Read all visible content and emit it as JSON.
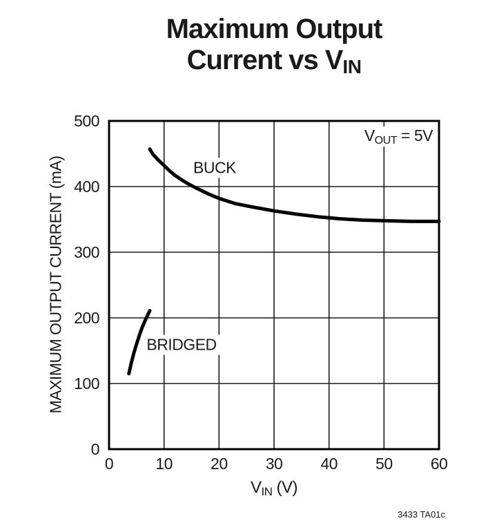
{
  "page": {
    "background": "#ffffff",
    "footer_code": "3433 TA01c"
  },
  "title": {
    "line1": "Maximum Output",
    "line2_prefix": "Current vs V",
    "line2_sub": "IN"
  },
  "axis": {
    "y_label": "MAXIMUM OUTPUT CURRENT (mA)",
    "x_label_prefix": "V",
    "x_label_sub": "IN",
    "x_label_suffix": " (V)"
  },
  "annotation": {
    "prefix": "V",
    "sub": "OUT",
    "suffix": " = 5V"
  },
  "curve_labels": {
    "buck": "BUCK",
    "bridged": "BRIDGED"
  },
  "chart_data": {
    "type": "line",
    "title": "Maximum Output Current vs VIN",
    "xlabel": "VIN (V)",
    "ylabel": "MAXIMUM OUTPUT CURRENT (mA)",
    "annotation": "VOUT = 5V",
    "xlim": [
      0,
      60
    ],
    "ylim": [
      0,
      500
    ],
    "xticks": [
      0,
      10,
      20,
      30,
      40,
      50,
      60
    ],
    "yticks": [
      0,
      100,
      200,
      300,
      400,
      500
    ],
    "grid": true,
    "legend_position": "none",
    "colors": {
      "line": "#000000",
      "grid": "#1a1a1a",
      "frame": "#000000",
      "text": "#1a1a1a"
    },
    "series": [
      {
        "name": "BUCK",
        "x": [
          7.4,
          8,
          9,
          10,
          11,
          12,
          14,
          16,
          18,
          20,
          23,
          26,
          30,
          34,
          38,
          42,
          46,
          50,
          55,
          60
        ],
        "y": [
          457,
          449,
          440,
          432,
          424,
          417,
          406,
          397,
          389,
          382,
          374,
          369,
          363,
          358,
          354,
          351,
          349,
          348,
          347,
          347
        ]
      },
      {
        "name": "BRIDGED",
        "x": [
          3.6,
          4,
          4.5,
          5,
          5.5,
          6,
          6.5,
          7,
          7.4
        ],
        "y": [
          115,
          130,
          146,
          160,
          173,
          185,
          195,
          204,
          211
        ]
      }
    ]
  }
}
